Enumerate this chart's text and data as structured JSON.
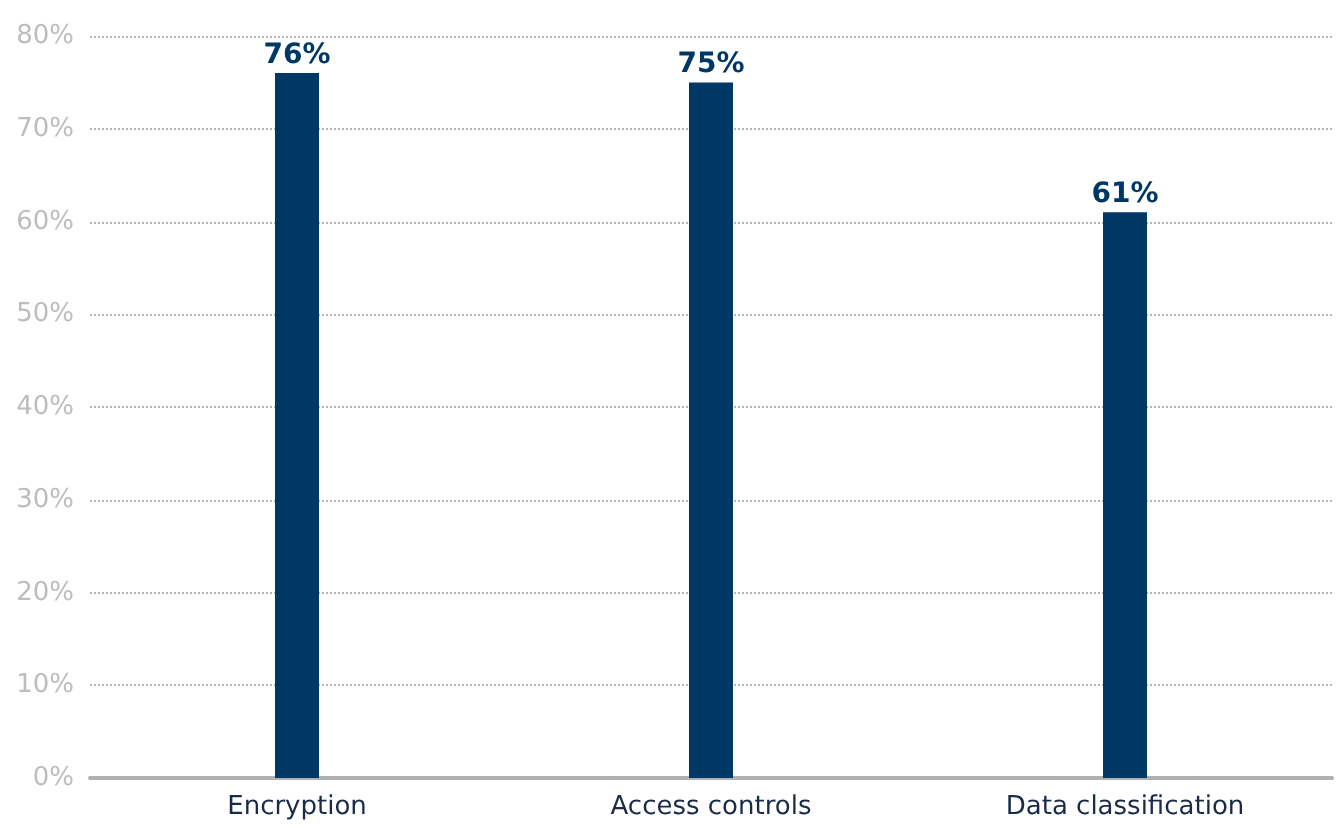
{
  "chart_data": {
    "type": "bar",
    "categories": [
      "Encryption",
      "Access controls",
      "Data classification"
    ],
    "values": [
      76,
      75,
      61
    ],
    "color": "#003865",
    "value_labels": [
      "76%",
      "75%",
      "61%"
    ],
    "ylim": [
      0,
      80
    ],
    "yticks": [
      {
        "value": 0,
        "label": "0%"
      },
      {
        "value": 10,
        "label": "10%"
      },
      {
        "value": 20,
        "label": "20%"
      },
      {
        "value": 30,
        "label": "30%"
      },
      {
        "value": 40,
        "label": "40%"
      },
      {
        "value": 50,
        "label": "50%"
      },
      {
        "value": 60,
        "label": "60%"
      },
      {
        "value": 70,
        "label": "70%"
      },
      {
        "value": 80,
        "label": "80%"
      }
    ],
    "grid": "y"
  }
}
